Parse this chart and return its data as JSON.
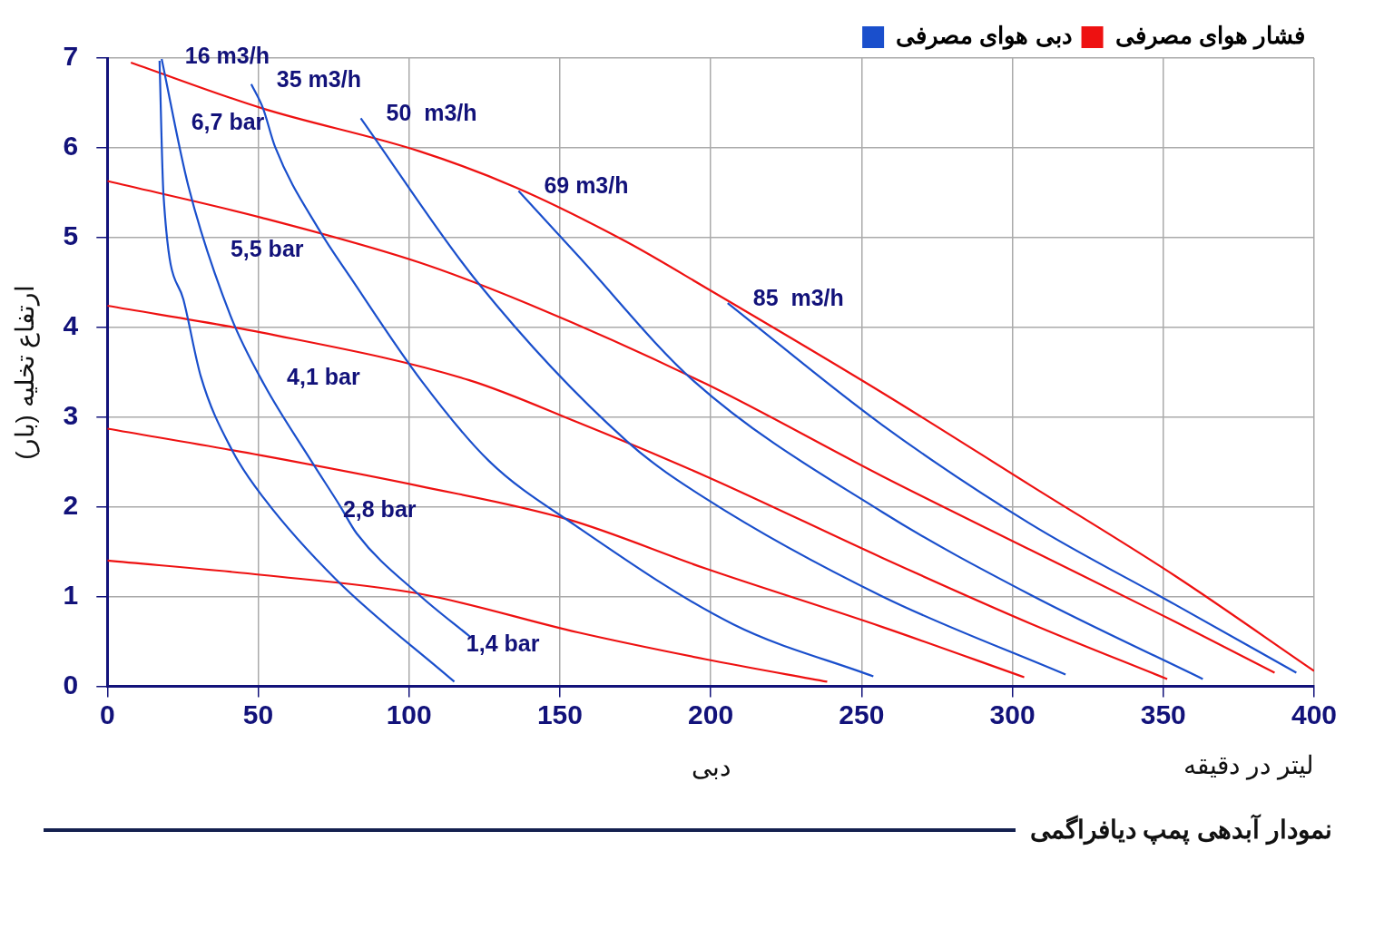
{
  "chart_data": {
    "type": "line",
    "title": "نمودار آبدهی پمپ دیافراگمی",
    "xlabel": "دبی",
    "ylabel": "ارتفاع تخلیه (بار)",
    "xlim": [
      0,
      400
    ],
    "xticks": [
      0,
      50,
      100,
      150,
      200,
      250,
      300,
      350,
      400
    ],
    "ylim": [
      0,
      7
    ],
    "yticks": [
      0,
      1,
      2,
      3,
      4,
      5,
      6,
      7
    ],
    "grid": true,
    "legend": "top right",
    "marker": "none",
    "line_style": "solid",
    "series": [
      {
        "name": "دبی هوای مصرفی",
        "color": "#1a4fcc",
        "x": [
          17.3,
          18.6,
          25.2,
          31.0,
          41.5,
          52.0,
          75.8,
          115
        ],
        "values": [
          6.97,
          5.48,
          4.31,
          3.45,
          2.62,
          2.09,
          1.19,
          0.05
        ]
      },
      {
        "color": "#1a4fcc",
        "x": [
          18.0,
          26.8,
          40.8,
          52.0,
          67.6,
          77.1,
          82.7,
          103.6,
          120.3
        ],
        "values": [
          6.99,
          5.58,
          4.13,
          3.36,
          2.51,
          2.01,
          1.7,
          1.01,
          0.55
        ]
      },
      {
        "color": "#1a4fcc",
        "x": [
          47.7,
          51.6,
          55.6,
          70.3,
          80.7,
          104.2,
          126.5,
          155.2,
          207.5,
          253.9
        ],
        "values": [
          6.71,
          6.44,
          6.01,
          5.08,
          4.55,
          3.4,
          2.51,
          1.79,
          0.69,
          0.11
        ]
      },
      {
        "color": "#1a4fcc",
        "x": [
          84,
          122.5,
          172.2,
          198.4,
          256.9,
          317.6
        ],
        "values": [
          6.33,
          4.51,
          2.73,
          2.09,
          1.0,
          0.13
        ]
      },
      {
        "color": "#1a4fcc",
        "x": [
          136.3,
          155.9,
          194.4,
          256.9,
          305.9,
          363.1
        ],
        "values": [
          5.52,
          4.8,
          3.4,
          1.94,
          1.02,
          0.08
        ]
      },
      {
        "color": "#1a4fcc",
        "x": [
          205.6,
          256.9,
          305.9,
          353.9,
          394.1
        ],
        "values": [
          4.27,
          2.91,
          1.81,
          0.91,
          0.15
        ]
      },
      {
        "name": "فشار هوای مصرفی",
        "color": "#ee1111",
        "x": [
          7.8,
          51.3,
          103.6,
          135.3,
          172.2,
          198.4,
          256.9,
          305.9,
          353.9,
          400
        ],
        "values": [
          6.95,
          6.44,
          5.96,
          5.56,
          4.95,
          4.44,
          3.27,
          2.24,
          1.23,
          0.17
        ]
      },
      {
        "color": "#ee1111",
        "x": [
          0,
          51.3,
          103.6,
          139.5,
          198.4,
          256.9,
          305.9,
          353.9,
          386.9
        ],
        "values": [
          5.63,
          5.22,
          4.72,
          4.26,
          3.37,
          2.34,
          1.52,
          0.72,
          0.15
        ]
      },
      {
        "color": "#ee1111",
        "x": [
          0,
          51.3,
          120,
          155.9,
          198.4,
          256.9,
          305.9,
          351.3
        ],
        "values": [
          4.24,
          3.94,
          3.41,
          2.94,
          2.34,
          1.43,
          0.7,
          0.08
        ]
      },
      {
        "color": "#ee1111",
        "x": [
          0,
          51.3,
          103.6,
          152.6,
          198.4,
          256.9,
          303.9
        ],
        "values": [
          2.87,
          2.57,
          2.23,
          1.86,
          1.31,
          0.66,
          0.1
        ]
      },
      {
        "color": "#ee1111",
        "x": [
          0,
          51.3,
          103.6,
          155.9,
          198.4,
          238.6
        ],
        "values": [
          1.4,
          1.24,
          1.03,
          0.6,
          0.3,
          0.05
        ]
      }
    ],
    "annotations": [
      {
        "text": "16 m3/h",
        "x": 17.3,
        "y": 6.97
      },
      {
        "text": "35 m3/h",
        "x": 47.7,
        "y": 6.71
      },
      {
        "text": "50  m3/h",
        "x": 84,
        "y": 6.33
      },
      {
        "text": "69 m3/h",
        "x": 136.3,
        "y": 5.52
      },
      {
        "text": "85  m3/h",
        "x": 205.6,
        "y": 4.27
      },
      {
        "text": "6,7 bar",
        "x": 27.8,
        "y": 6.72
      },
      {
        "text": "5,5 bar",
        "x": 40.8,
        "y": 5.3
      },
      {
        "text": "4,1 bar",
        "x": 59.5,
        "y": 3.88
      },
      {
        "text": "2,8 bar",
        "x": 78.1,
        "y": 2.4
      },
      {
        "text": "1,4 bar",
        "x": 119,
        "y": 0.9
      },
      "لیتر در دقیقه"
    ]
  }
}
